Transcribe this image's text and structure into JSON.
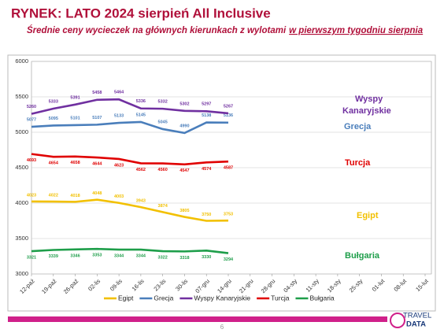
{
  "chart_data": {
    "type": "line",
    "title": "RYNEK: LATO 2024 sierpień All Inclusive",
    "subtitle": [
      "Średnie ceny wycieczek na głównych kierunkach z wylotami",
      "w pierwszym tygodniu sierpnia"
    ],
    "categories": [
      "12-paź",
      "19-paź",
      "26-paź",
      "02-lis",
      "09-lis",
      "16-lis",
      "23-lis",
      "30-lis",
      "07-gru",
      "14-gru",
      "21-gru",
      "28-gru",
      "04-sty",
      "11-sty",
      "18-sty",
      "25-sty",
      "01-lut",
      "08-lut",
      "15-lut"
    ],
    "series": [
      {
        "name": "Egipt",
        "color": "#f2c000",
        "values": [
          4023,
          4022,
          4018,
          4048,
          4003,
          3943,
          3874,
          3805,
          3750,
          3753,
          null,
          null,
          null,
          null,
          null,
          null,
          null,
          null,
          null
        ]
      },
      {
        "name": "Grecja",
        "color": "#4a7ebb",
        "values": [
          5077,
          5095,
          5101,
          5107,
          5133,
          5145,
          5045,
          4990,
          5138,
          5136,
          null,
          null,
          null,
          null,
          null,
          null,
          null,
          null,
          null
        ]
      },
      {
        "name": "Wyspy Kanaryjskie",
        "color": "#7030a0",
        "values": [
          5260,
          5333,
          5391,
          5458,
          5464,
          5336,
          5332,
          5302,
          5297,
          5267,
          null,
          null,
          null,
          null,
          null,
          null,
          null,
          null,
          null
        ]
      },
      {
        "name": "Turcja",
        "color": "#e00000",
        "values": [
          4693,
          4654,
          4658,
          4644,
          4623,
          4562,
          4560,
          4547,
          4574,
          4587,
          null,
          null,
          null,
          null,
          null,
          null,
          null,
          null,
          null
        ]
      },
      {
        "name": "Bułgaria",
        "color": "#1e9e4a",
        "values": [
          3321,
          3339,
          3346,
          3353,
          3344,
          3344,
          3322,
          3318,
          3330,
          3294,
          null,
          null,
          null,
          null,
          null,
          null,
          null,
          null,
          null
        ]
      }
    ],
    "ylim": [
      3000,
      6000
    ],
    "yticks": [
      3000,
      3500,
      4000,
      4500,
      5000,
      5500,
      6000
    ],
    "grid": true,
    "legend": "bottom"
  },
  "page_number": "6",
  "logo": [
    "TRAVEL",
    "DATA"
  ]
}
